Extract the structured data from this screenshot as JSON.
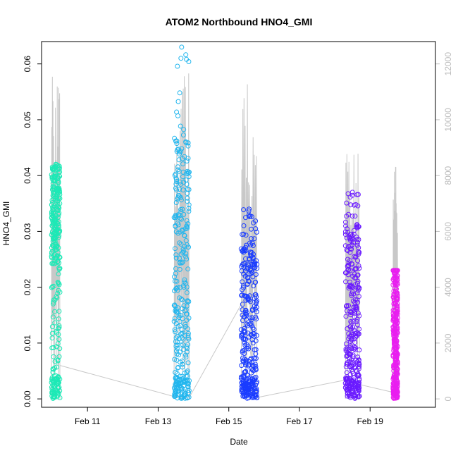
{
  "chart_data": {
    "type": "scatter",
    "title": "ATOM2 Northbound HNO4_GMI",
    "xlabel": "Date",
    "ylabel": "HNO4_GMI",
    "x_ticks": [
      "Feb 11",
      "Feb 13",
      "Feb 15",
      "Feb 17",
      "Feb 19"
    ],
    "x_tick_days": [
      11,
      13,
      15,
      17,
      19
    ],
    "xlim_days": [
      9.7,
      20.85
    ],
    "ylim": [
      -0.0015,
      0.064
    ],
    "y_ticks": [
      "0.00",
      "0.01",
      "0.02",
      "0.03",
      "0.04",
      "0.05",
      "0.06"
    ],
    "y_tick_values": [
      0,
      0.01,
      0.02,
      0.03,
      0.04,
      0.05,
      0.06
    ],
    "y2_ticks": [
      "0",
      "2000",
      "4000",
      "6000",
      "8000",
      "10000",
      "12000"
    ],
    "y2_tick_values": [
      0,
      2000,
      4000,
      6000,
      8000,
      10000,
      12000
    ],
    "y2lim": [
      -300,
      12800
    ],
    "altitude_color": "#c8c8c8",
    "altitude_track": [
      {
        "day": 10.22,
        "alt": 1200
      },
      {
        "day": 13.55,
        "alt": 50
      },
      {
        "day": 13.88,
        "alt": 50
      },
      {
        "day": 15.4,
        "alt": 3500
      },
      {
        "day": 15.8,
        "alt": 50
      },
      {
        "day": 18.4,
        "alt": 700
      },
      {
        "day": 18.75,
        "alt": 500
      },
      {
        "day": 19.7,
        "alt": 220
      }
    ],
    "flights": [
      {
        "start": 9.98,
        "end": 10.22,
        "color": "#1de9b6",
        "min": 0.0,
        "max": 0.042,
        "band": [
          0.024,
          0.041
        ],
        "peak_alt": 12000
      },
      {
        "start": 13.45,
        "end": 13.88,
        "color": "#22b6ee",
        "min": 0.0,
        "max": 0.063,
        "band": [
          0.0,
          0.047
        ],
        "peak_alt": 12000
      },
      {
        "start": 15.35,
        "end": 15.8,
        "color": "#1a3cff",
        "min": 0.0,
        "max": 0.034,
        "band": [
          0.0,
          0.029
        ],
        "peak_alt": 11800
      },
      {
        "start": 18.3,
        "end": 18.7,
        "color": "#6a1aff",
        "min": 0.0,
        "max": 0.037,
        "band": [
          0.0,
          0.031
        ],
        "peak_alt": 9500
      },
      {
        "start": 19.65,
        "end": 19.78,
        "color": "#e91ef0",
        "min": 0.0,
        "max": 0.023,
        "band": [
          0.0,
          0.023
        ],
        "peak_alt": 8500
      }
    ]
  }
}
